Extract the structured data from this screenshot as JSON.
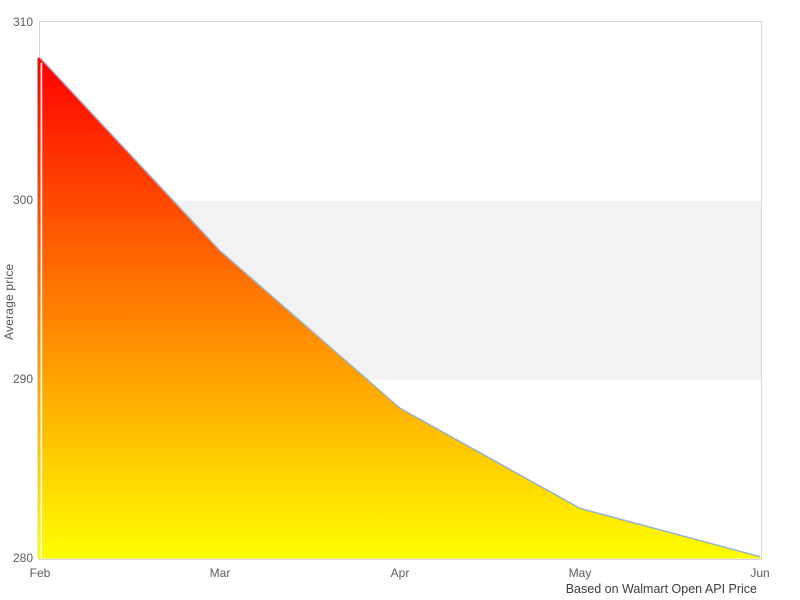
{
  "chart": {
    "y_axis_title": "Average price",
    "caption": "Based on Walmart Open API Price"
  },
  "chart_data": {
    "type": "area",
    "x": [
      "Feb",
      "Mar",
      "Apr",
      "May",
      "Jun"
    ],
    "values": [
      308,
      297.2,
      288.4,
      282.8,
      280.1
    ],
    "series_name": "Average price",
    "title": "",
    "xlabel": "",
    "ylabel": "Average price",
    "ylim": [
      280,
      310
    ],
    "y_ticks": [
      310,
      300,
      290,
      280
    ],
    "caption": "Based on Walmart Open API Price",
    "plot_band": {
      "from": 290,
      "to": 300,
      "color": "#f2f2f2"
    },
    "area_gradient": {
      "top": "#ff0000",
      "bottom": "#ffff00"
    },
    "line_color": "#92b2d6",
    "plot_border_color": "#d6d6d6",
    "grid": "off",
    "legend": "none"
  }
}
